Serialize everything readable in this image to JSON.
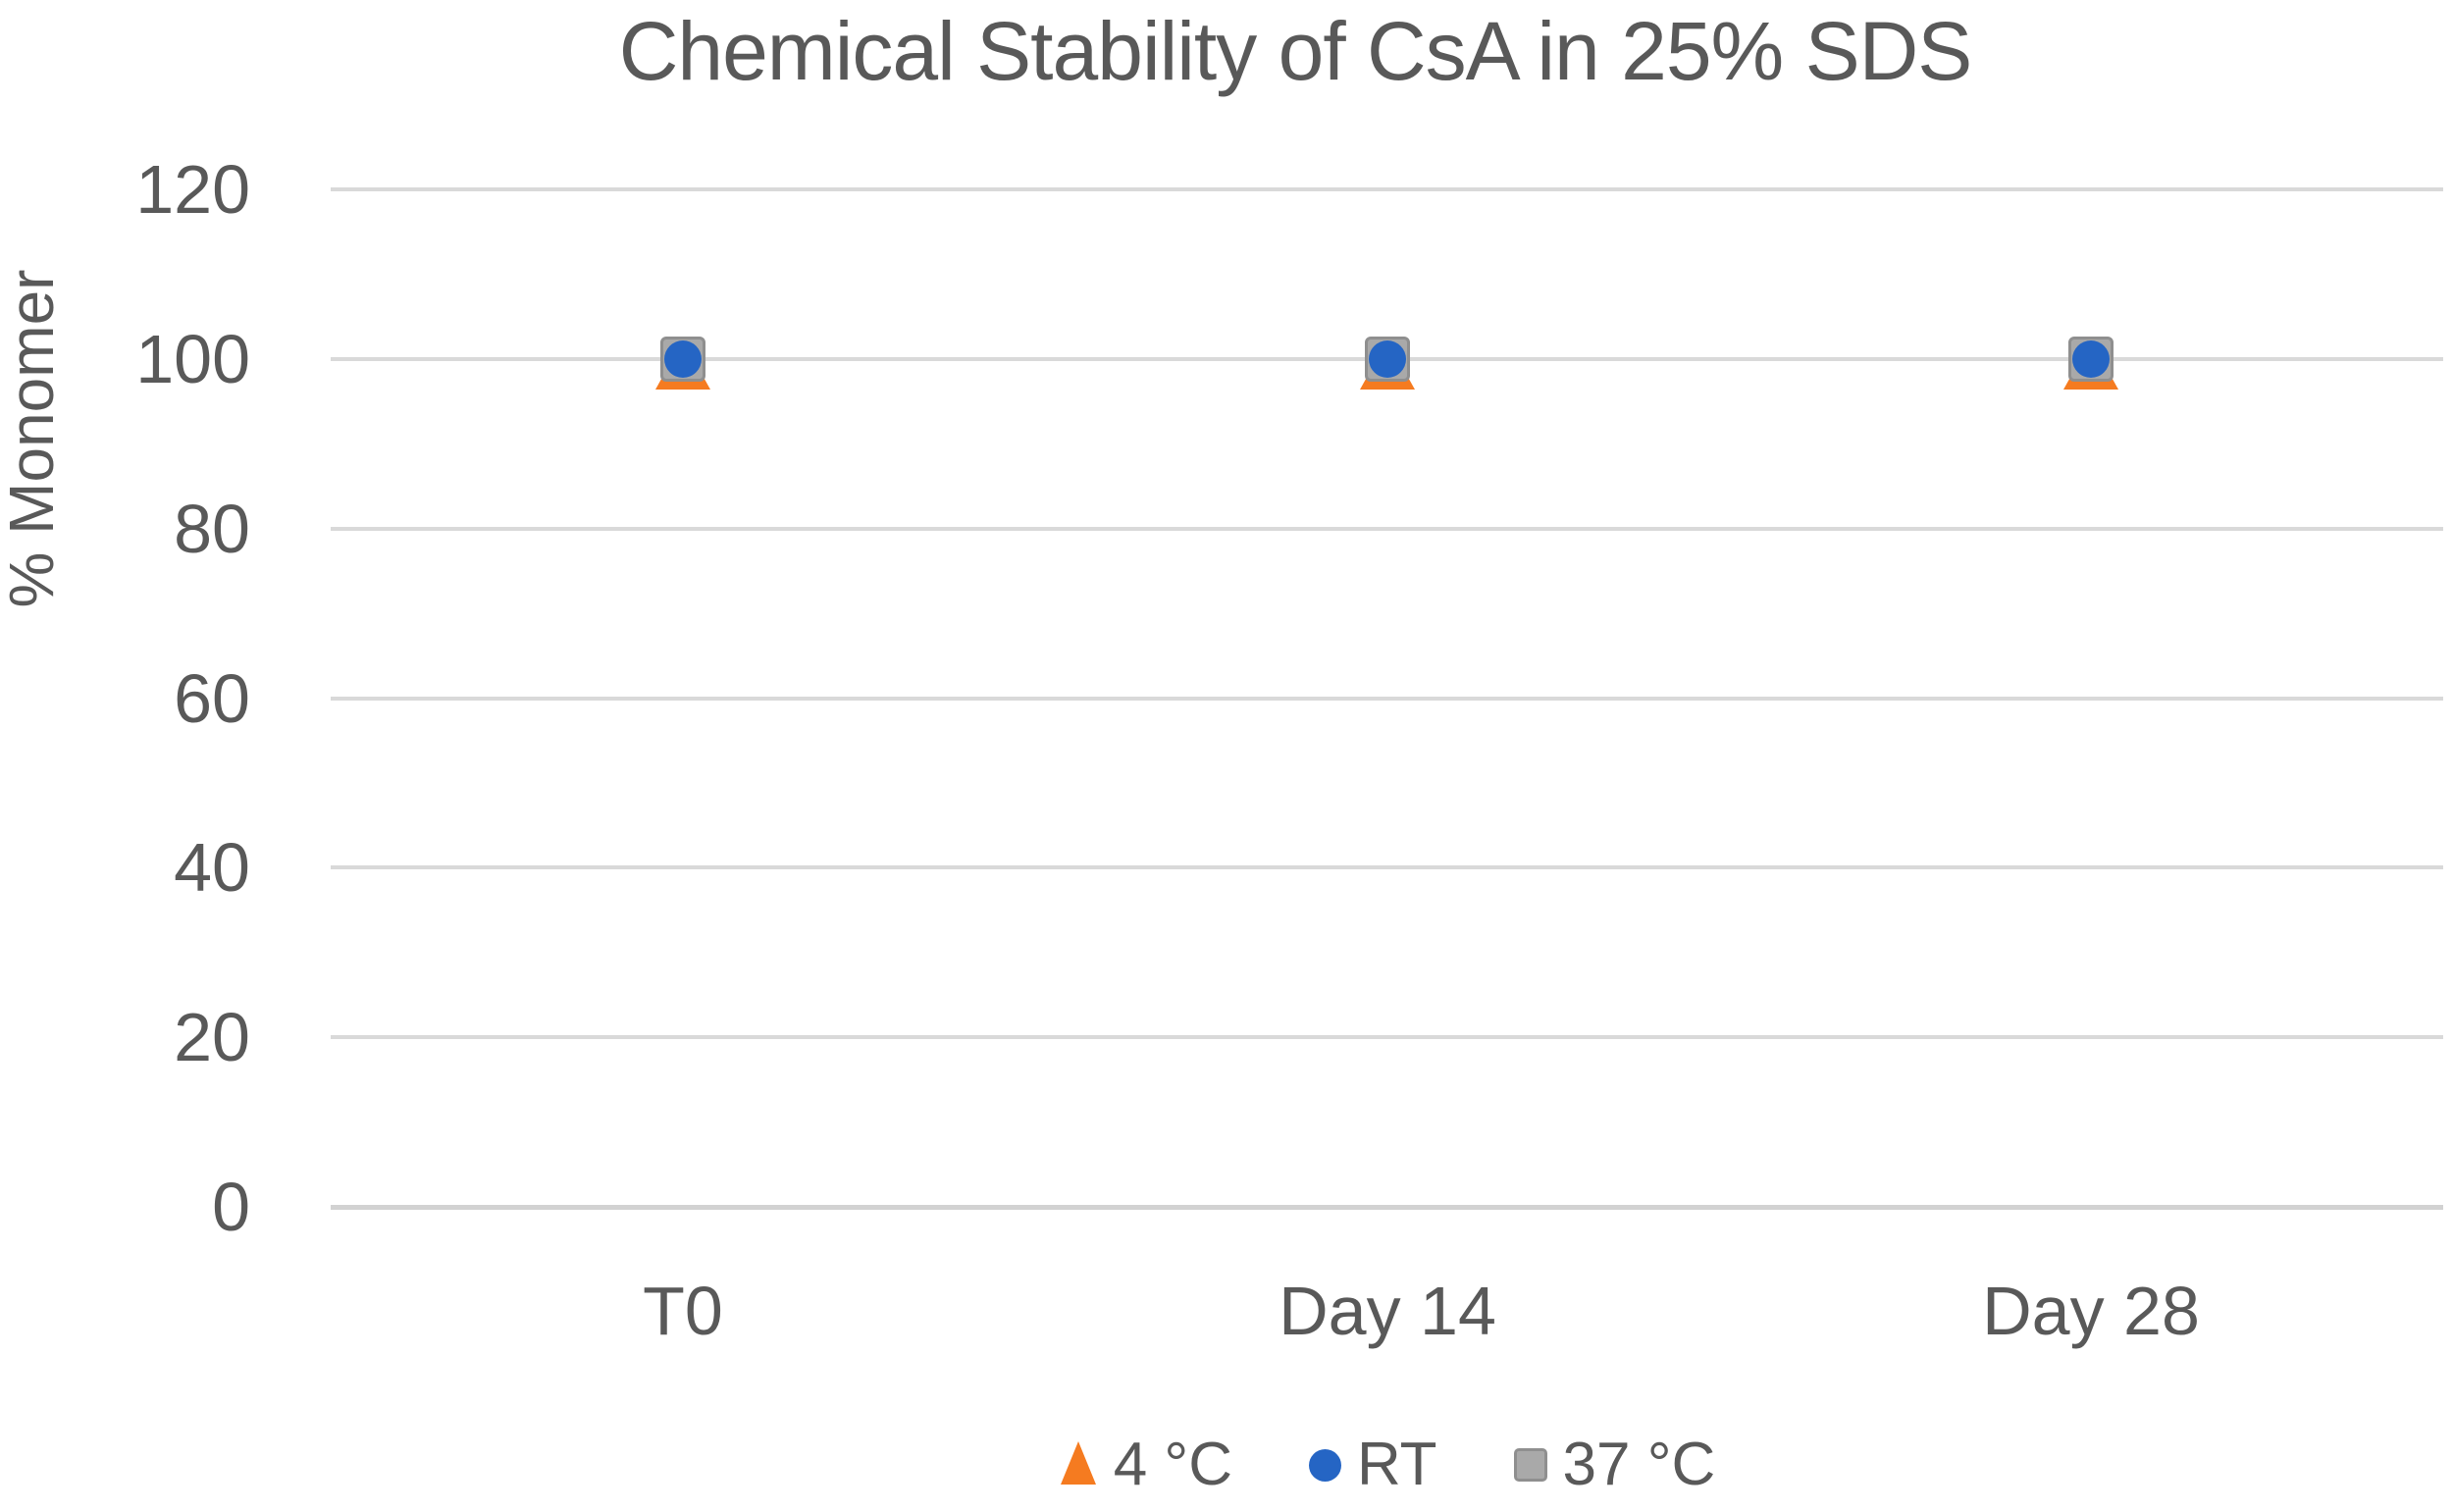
{
  "chart_data": {
    "type": "scatter",
    "title": "Chemical Stability of CsA in 25% SDS",
    "ylabel": "% Monomer",
    "xlabel": "",
    "categories": [
      "T0",
      "Day 14",
      "Day 28"
    ],
    "series": [
      {
        "name": "4 °C",
        "marker": "triangle",
        "color": "#F57B20",
        "border_color": "#E06A10",
        "values": [
          100,
          100,
          100
        ]
      },
      {
        "name": "RT",
        "marker": "circle",
        "color": "#2565C4",
        "border_color": "#1F58AE",
        "values": [
          100,
          100,
          100
        ]
      },
      {
        "name": "37 °C",
        "marker": "square",
        "color": "#A9A9A9",
        "border_color": "#8F8F8F",
        "values": [
          100,
          100,
          100
        ]
      }
    ],
    "ylim": [
      0,
      120
    ],
    "yticks": [
      0,
      20,
      40,
      60,
      80,
      100,
      120
    ],
    "grid": true,
    "legend_position": "bottom",
    "colors": {
      "text": "#595959",
      "gridline": "#D9D9D9",
      "axis_line": "#D2D2D2",
      "background": "#FFFFFF"
    }
  }
}
